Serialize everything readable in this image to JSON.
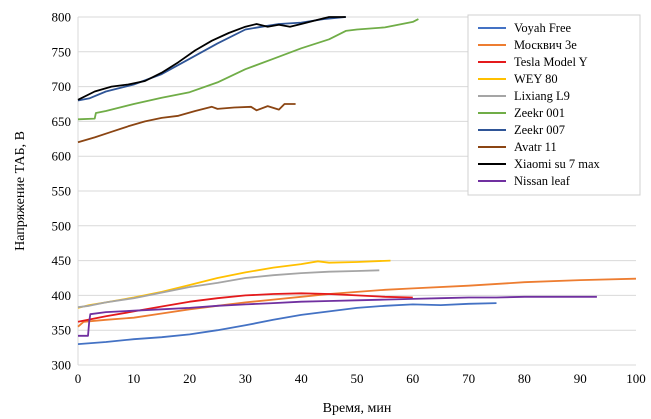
{
  "chart_data": {
    "type": "line",
    "title": "",
    "xlabel": "Время, мин",
    "ylabel": "Напряжение ТАБ, В",
    "xlim": [
      0,
      100
    ],
    "ylim": [
      300,
      800
    ],
    "xticks": [
      0,
      10,
      20,
      30,
      40,
      50,
      60,
      70,
      80,
      90,
      100
    ],
    "yticks": [
      300,
      350,
      400,
      450,
      500,
      550,
      600,
      650,
      700,
      750,
      800
    ],
    "grid": "horizontal",
    "legend_position": "top-right",
    "series": [
      {
        "name": "Voyah Free",
        "color": "#4472C4",
        "points": [
          [
            0,
            330
          ],
          [
            5,
            333
          ],
          [
            10,
            337
          ],
          [
            15,
            340
          ],
          [
            20,
            344
          ],
          [
            25,
            350
          ],
          [
            30,
            357
          ],
          [
            35,
            365
          ],
          [
            40,
            372
          ],
          [
            45,
            377
          ],
          [
            50,
            382
          ],
          [
            55,
            385
          ],
          [
            60,
            387
          ],
          [
            65,
            386
          ],
          [
            70,
            388
          ],
          [
            75,
            389
          ]
        ]
      },
      {
        "name": "Москвич 3е",
        "color": "#ED7D31",
        "points": [
          [
            0,
            355
          ],
          [
            1,
            362
          ],
          [
            5,
            365
          ],
          [
            10,
            368
          ],
          [
            15,
            374
          ],
          [
            20,
            380
          ],
          [
            25,
            385
          ],
          [
            30,
            390
          ],
          [
            35,
            394
          ],
          [
            40,
            398
          ],
          [
            45,
            402
          ],
          [
            50,
            405
          ],
          [
            55,
            408
          ],
          [
            60,
            410
          ],
          [
            70,
            414
          ],
          [
            80,
            419
          ],
          [
            90,
            422
          ],
          [
            100,
            424
          ]
        ]
      },
      {
        "name": "Tesla Model Y",
        "color": "#E41A1C",
        "points": [
          [
            0,
            362
          ],
          [
            5,
            370
          ],
          [
            10,
            377
          ],
          [
            15,
            384
          ],
          [
            20,
            391
          ],
          [
            25,
            396
          ],
          [
            30,
            400
          ],
          [
            35,
            402
          ],
          [
            40,
            403
          ],
          [
            45,
            402
          ],
          [
            50,
            400
          ],
          [
            55,
            398
          ],
          [
            60,
            397
          ]
        ]
      },
      {
        "name": "WEY 80",
        "color": "#FFC000",
        "points": [
          [
            0,
            382
          ],
          [
            2,
            386
          ],
          [
            5,
            390
          ],
          [
            10,
            397
          ],
          [
            15,
            405
          ],
          [
            20,
            415
          ],
          [
            25,
            425
          ],
          [
            30,
            433
          ],
          [
            35,
            440
          ],
          [
            40,
            445
          ],
          [
            43,
            449
          ],
          [
            45,
            447
          ],
          [
            50,
            448
          ],
          [
            56,
            450
          ]
        ]
      },
      {
        "name": "Lixiang L9",
        "color": "#A5A5A5",
        "points": [
          [
            0,
            383
          ],
          [
            2,
            385
          ],
          [
            5,
            390
          ],
          [
            10,
            396
          ],
          [
            15,
            404
          ],
          [
            20,
            412
          ],
          [
            25,
            418
          ],
          [
            30,
            425
          ],
          [
            35,
            429
          ],
          [
            40,
            432
          ],
          [
            45,
            434
          ],
          [
            50,
            435
          ],
          [
            54,
            436
          ]
        ]
      },
      {
        "name": "Zeekr 001",
        "color": "#70AD47",
        "points": [
          [
            0,
            653
          ],
          [
            3,
            654
          ],
          [
            3.2,
            662
          ],
          [
            5,
            665
          ],
          [
            10,
            675
          ],
          [
            15,
            684
          ],
          [
            20,
            692
          ],
          [
            25,
            706
          ],
          [
            30,
            725
          ],
          [
            35,
            740
          ],
          [
            40,
            755
          ],
          [
            45,
            768
          ],
          [
            48,
            780
          ],
          [
            50,
            782
          ],
          [
            55,
            785
          ],
          [
            60,
            793
          ],
          [
            61,
            797
          ]
        ]
      },
      {
        "name": "Zeekr 007",
        "color": "#2F5597",
        "points": [
          [
            0,
            680
          ],
          [
            2,
            683
          ],
          [
            5,
            693
          ],
          [
            10,
            703
          ],
          [
            15,
            718
          ],
          [
            20,
            740
          ],
          [
            25,
            762
          ],
          [
            30,
            782
          ],
          [
            33,
            786
          ],
          [
            36,
            790
          ],
          [
            40,
            792
          ],
          [
            44,
            797
          ],
          [
            48,
            800
          ]
        ]
      },
      {
        "name": "Avatr 11",
        "color": "#8B4513",
        "points": [
          [
            0,
            620
          ],
          [
            3,
            627
          ],
          [
            6,
            635
          ],
          [
            9,
            643
          ],
          [
            12,
            650
          ],
          [
            15,
            655
          ],
          [
            18,
            658
          ],
          [
            21,
            665
          ],
          [
            24,
            671
          ],
          [
            25,
            668
          ],
          [
            28,
            670
          ],
          [
            31,
            671
          ],
          [
            32,
            666
          ],
          [
            34,
            672
          ],
          [
            36,
            667
          ],
          [
            37,
            675
          ],
          [
            39,
            675
          ]
        ]
      },
      {
        "name": "Xiaomi su 7 max",
        "color": "#000000",
        "points": [
          [
            0,
            681
          ],
          [
            3,
            693
          ],
          [
            6,
            700
          ],
          [
            9,
            703
          ],
          [
            12,
            708
          ],
          [
            15,
            720
          ],
          [
            18,
            735
          ],
          [
            21,
            752
          ],
          [
            24,
            766
          ],
          [
            27,
            777
          ],
          [
            30,
            786
          ],
          [
            32,
            790
          ],
          [
            34,
            786
          ],
          [
            36,
            789
          ],
          [
            38,
            786
          ],
          [
            40,
            790
          ],
          [
            43,
            796
          ],
          [
            45,
            800
          ],
          [
            48,
            800
          ]
        ]
      },
      {
        "name": "Nissan leaf",
        "color": "#7030A0",
        "points": [
          [
            0,
            342
          ],
          [
            1.8,
            342
          ],
          [
            2,
            362
          ],
          [
            2.2,
            373
          ],
          [
            5,
            376
          ],
          [
            10,
            378
          ],
          [
            15,
            380
          ],
          [
            20,
            382
          ],
          [
            25,
            385
          ],
          [
            30,
            387
          ],
          [
            35,
            389
          ],
          [
            40,
            391
          ],
          [
            45,
            392
          ],
          [
            50,
            393
          ],
          [
            55,
            394
          ],
          [
            60,
            395
          ],
          [
            65,
            396
          ],
          [
            70,
            397
          ],
          [
            75,
            397
          ],
          [
            80,
            398
          ],
          [
            85,
            398
          ],
          [
            90,
            398
          ],
          [
            93,
            398
          ]
        ]
      }
    ]
  }
}
